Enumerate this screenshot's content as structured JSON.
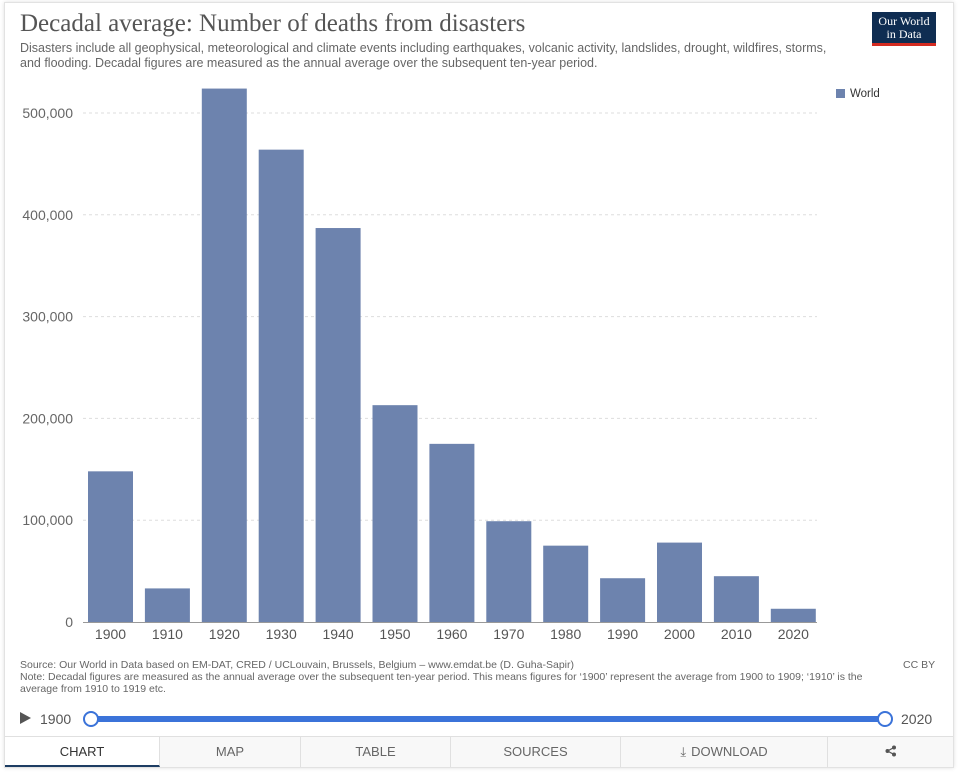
{
  "header": {
    "title": "Decadal average: Number of deaths from disasters",
    "subtitle": "Disasters include all geophysical, meteorological and climate events including earthquakes, volcanic activity, landslides, drought, wildfires, storms, and flooding. Decadal figures are measured as the annual average over the subsequent ten-year period.",
    "logo_line1": "Our World",
    "logo_line2": "in Data"
  },
  "colors": {
    "bar": "#6d83ae",
    "grid": "#dddddd",
    "accent": "#3b73d9",
    "logo_bg": "#0f2d52",
    "logo_bar": "#d42b21"
  },
  "chart_data": {
    "type": "bar",
    "title": "Decadal average: Number of deaths from disasters",
    "categories": [
      "1900",
      "1910",
      "1920",
      "1930",
      "1940",
      "1950",
      "1960",
      "1970",
      "1980",
      "1990",
      "2000",
      "2010",
      "2020"
    ],
    "series": [
      {
        "name": "World",
        "values": [
          148000,
          33000,
          524000,
          464000,
          387000,
          213000,
          175000,
          99000,
          75000,
          43000,
          78000,
          45000,
          13000
        ]
      }
    ],
    "ylim": [
      0,
      500000
    ],
    "yticks": [
      0,
      100000,
      200000,
      300000,
      400000,
      500000
    ],
    "ytick_labels": [
      "0",
      "100,000",
      "200,000",
      "300,000",
      "400,000",
      "500,000"
    ],
    "grid": true,
    "legend_position": "top-right"
  },
  "footer": {
    "source": "Source: Our World in Data based on EM-DAT, CRED / UCLouvain, Brussels, Belgium – www.emdat.be (D. Guha-Sapir)",
    "note": "Note: Decadal figures are measured as the annual average over the subsequent ten-year period. This means figures for ‘1900’ represent the average from 1900 to 1909; ‘1910’ is the average from 1910 to 1919 etc.",
    "license": "CC BY"
  },
  "timeline": {
    "start": "1900",
    "end": "2020"
  },
  "tabs": [
    {
      "label": "CHART",
      "icon": ""
    },
    {
      "label": "MAP",
      "icon": ""
    },
    {
      "label": "TABLE",
      "icon": ""
    },
    {
      "label": "SOURCES",
      "icon": ""
    },
    {
      "label": "DOWNLOAD",
      "icon": "download-icon"
    },
    {
      "label": "",
      "icon": "share-icon"
    }
  ]
}
